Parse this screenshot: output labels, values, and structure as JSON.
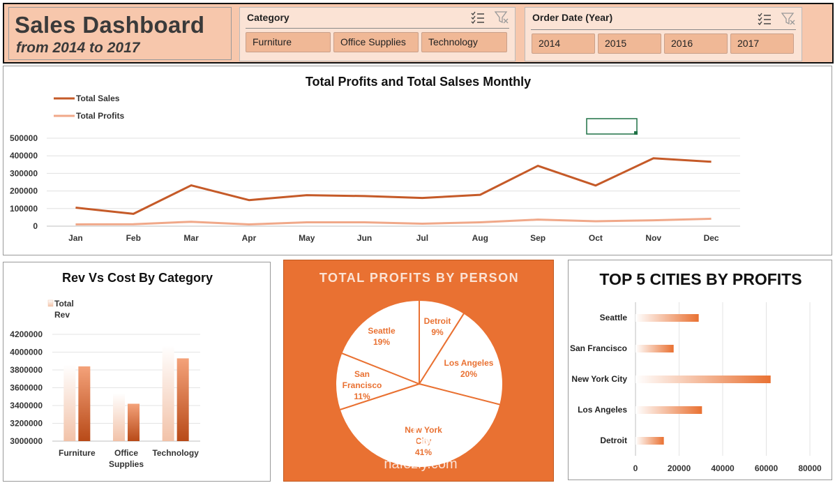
{
  "header": {
    "title": "Sales Dashboard",
    "subtitle": "from 2014 to 2017"
  },
  "slicers": {
    "category": {
      "label": "Category",
      "items": [
        "Furniture",
        "Office Supplies",
        "Technology"
      ]
    },
    "year": {
      "label": "Order Date (Year)",
      "items": [
        "2014",
        "2015",
        "2016",
        "2017"
      ]
    }
  },
  "colors": {
    "accent": "#e97132",
    "sales_line": "#c55a28",
    "profit_line": "#f0a889",
    "header_bg": "#f7c7ac",
    "slicer_btn": "#f0b896"
  },
  "watermark": {
    "arabic": "نفعلي",
    "latin": "nafezly.com"
  },
  "chart_data": [
    {
      "type": "line",
      "title": "Total Profits and Total Salses Monthly",
      "categories": [
        "Jan",
        "Feb",
        "Mar",
        "Apr",
        "May",
        "Jun",
        "Jul",
        "Aug",
        "Sep",
        "Oct",
        "Nov",
        "Dec"
      ],
      "series": [
        {
          "name": "Total Sales",
          "values": [
            105000,
            70000,
            232000,
            148000,
            176000,
            171000,
            160000,
            178000,
            343000,
            231000,
            386000,
            366000
          ]
        },
        {
          "name": "Total Profits",
          "values": [
            10000,
            11000,
            25000,
            10000,
            22000,
            22000,
            14000,
            22000,
            37000,
            28000,
            33000,
            42000
          ]
        }
      ],
      "ylim": [
        0,
        500000
      ],
      "yticks": [
        "0",
        "100000",
        "200000",
        "300000",
        "400000",
        "500000"
      ],
      "grid": true,
      "legend": "top-left"
    },
    {
      "type": "bar",
      "title": "Rev Vs Cost By Category",
      "categories": [
        "Furniture",
        "Office Supplies",
        "Technology"
      ],
      "category_lines": [
        [
          "Furniture"
        ],
        [
          "Office",
          "Supplies"
        ],
        [
          "Technology"
        ]
      ],
      "series": [
        {
          "name": "Total Rev",
          "legend_lines": [
            "Total",
            "Rev"
          ],
          "values": [
            3860000,
            3540000,
            4080000
          ]
        },
        {
          "values": [
            3840000,
            3420000,
            3930000
          ]
        }
      ],
      "ylim": [
        3000000,
        4200000
      ],
      "yticks": [
        "3000000",
        "3200000",
        "3400000",
        "3600000",
        "3800000",
        "4000000",
        "4200000"
      ],
      "grid": true,
      "legend": "top-left"
    },
    {
      "type": "pie",
      "title": "TOTAL PROFITS BY PERSON",
      "slices": [
        {
          "label": "Detroit",
          "value": 9,
          "pct": "9%"
        },
        {
          "label": "Los Angeles",
          "value": 20,
          "pct": "20%"
        },
        {
          "label": "New York City",
          "value": 41,
          "pct": "41%"
        },
        {
          "label": "San Francisco",
          "value": 11,
          "pct": "11%"
        },
        {
          "label": "Seattle",
          "value": 19,
          "pct": "19%"
        }
      ]
    },
    {
      "type": "bar",
      "orientation": "horizontal",
      "title": "TOP 5 CITIES BY PROFITS",
      "categories": [
        "Seattle",
        "San Francisco",
        "New York City",
        "Los Angeles",
        "Detroit"
      ],
      "values": [
        29000,
        17500,
        62000,
        30500,
        13000
      ],
      "xlim": [
        0,
        80000
      ],
      "xticks": [
        "0",
        "20000",
        "40000",
        "60000",
        "80000"
      ],
      "grid": true
    }
  ]
}
